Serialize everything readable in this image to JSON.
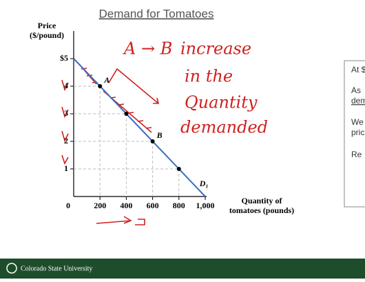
{
  "chart_data": {
    "type": "line",
    "title": "Demand for Tomatoes",
    "y_label": "Price ($/pound)",
    "x_label": "Quantity of tomatoes (pounds)",
    "x": [
      0,
      200,
      400,
      600,
      800,
      1000
    ],
    "series": [
      {
        "name": "D₁",
        "color": "#3a6fc4",
        "values": [
          5,
          4,
          3,
          2,
          1,
          0
        ]
      }
    ],
    "point_labels": [
      null,
      "A",
      null,
      "B",
      null,
      null
    ],
    "xlim": [
      0,
      1000
    ],
    "ylim": [
      0,
      6
    ],
    "xticks": [
      0,
      200,
      400,
      600,
      800,
      {
        "value": 1000,
        "label": "1,000"
      }
    ],
    "yticks": [
      1,
      2,
      3,
      4,
      {
        "value": 5,
        "label": "$5"
      }
    ],
    "guide_lines": true
  },
  "handwritten_note": [
    "A → B",
    "increase",
    "in the",
    "Quantity",
    "demanded"
  ],
  "panel": {
    "lines": [
      "At $",
      "As",
      "dem",
      "We",
      "pric",
      "Re"
    ]
  },
  "footer": {
    "org": "Colorado State University"
  }
}
